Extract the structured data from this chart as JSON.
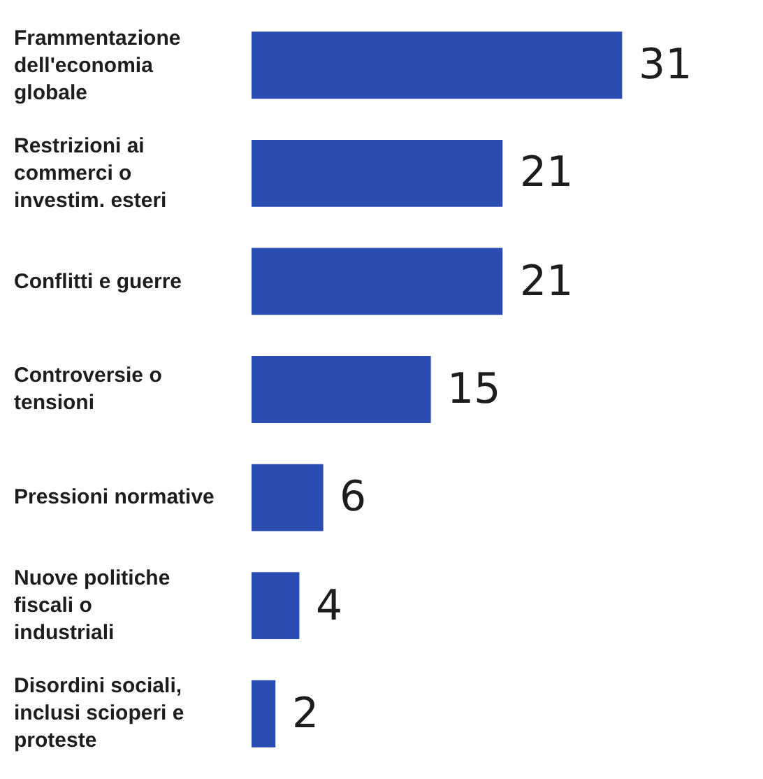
{
  "chart_data": {
    "type": "bar",
    "orientation": "horizontal",
    "tick_labels": false,
    "categories": [
      "Frammentazione dell'economia globale",
      "Restrizioni ai commerci o investim. esteri",
      "Conflitti e guerre",
      "Controversie o tensioni",
      "Pressioni normative",
      "Nuove politiche fiscali o industriali",
      "Disordini sociali, inclusi scioperi e proteste"
    ],
    "values": [
      31,
      21,
      21,
      15,
      6,
      4,
      2
    ],
    "color": "#2b4db3",
    "data_labels": true
  }
}
